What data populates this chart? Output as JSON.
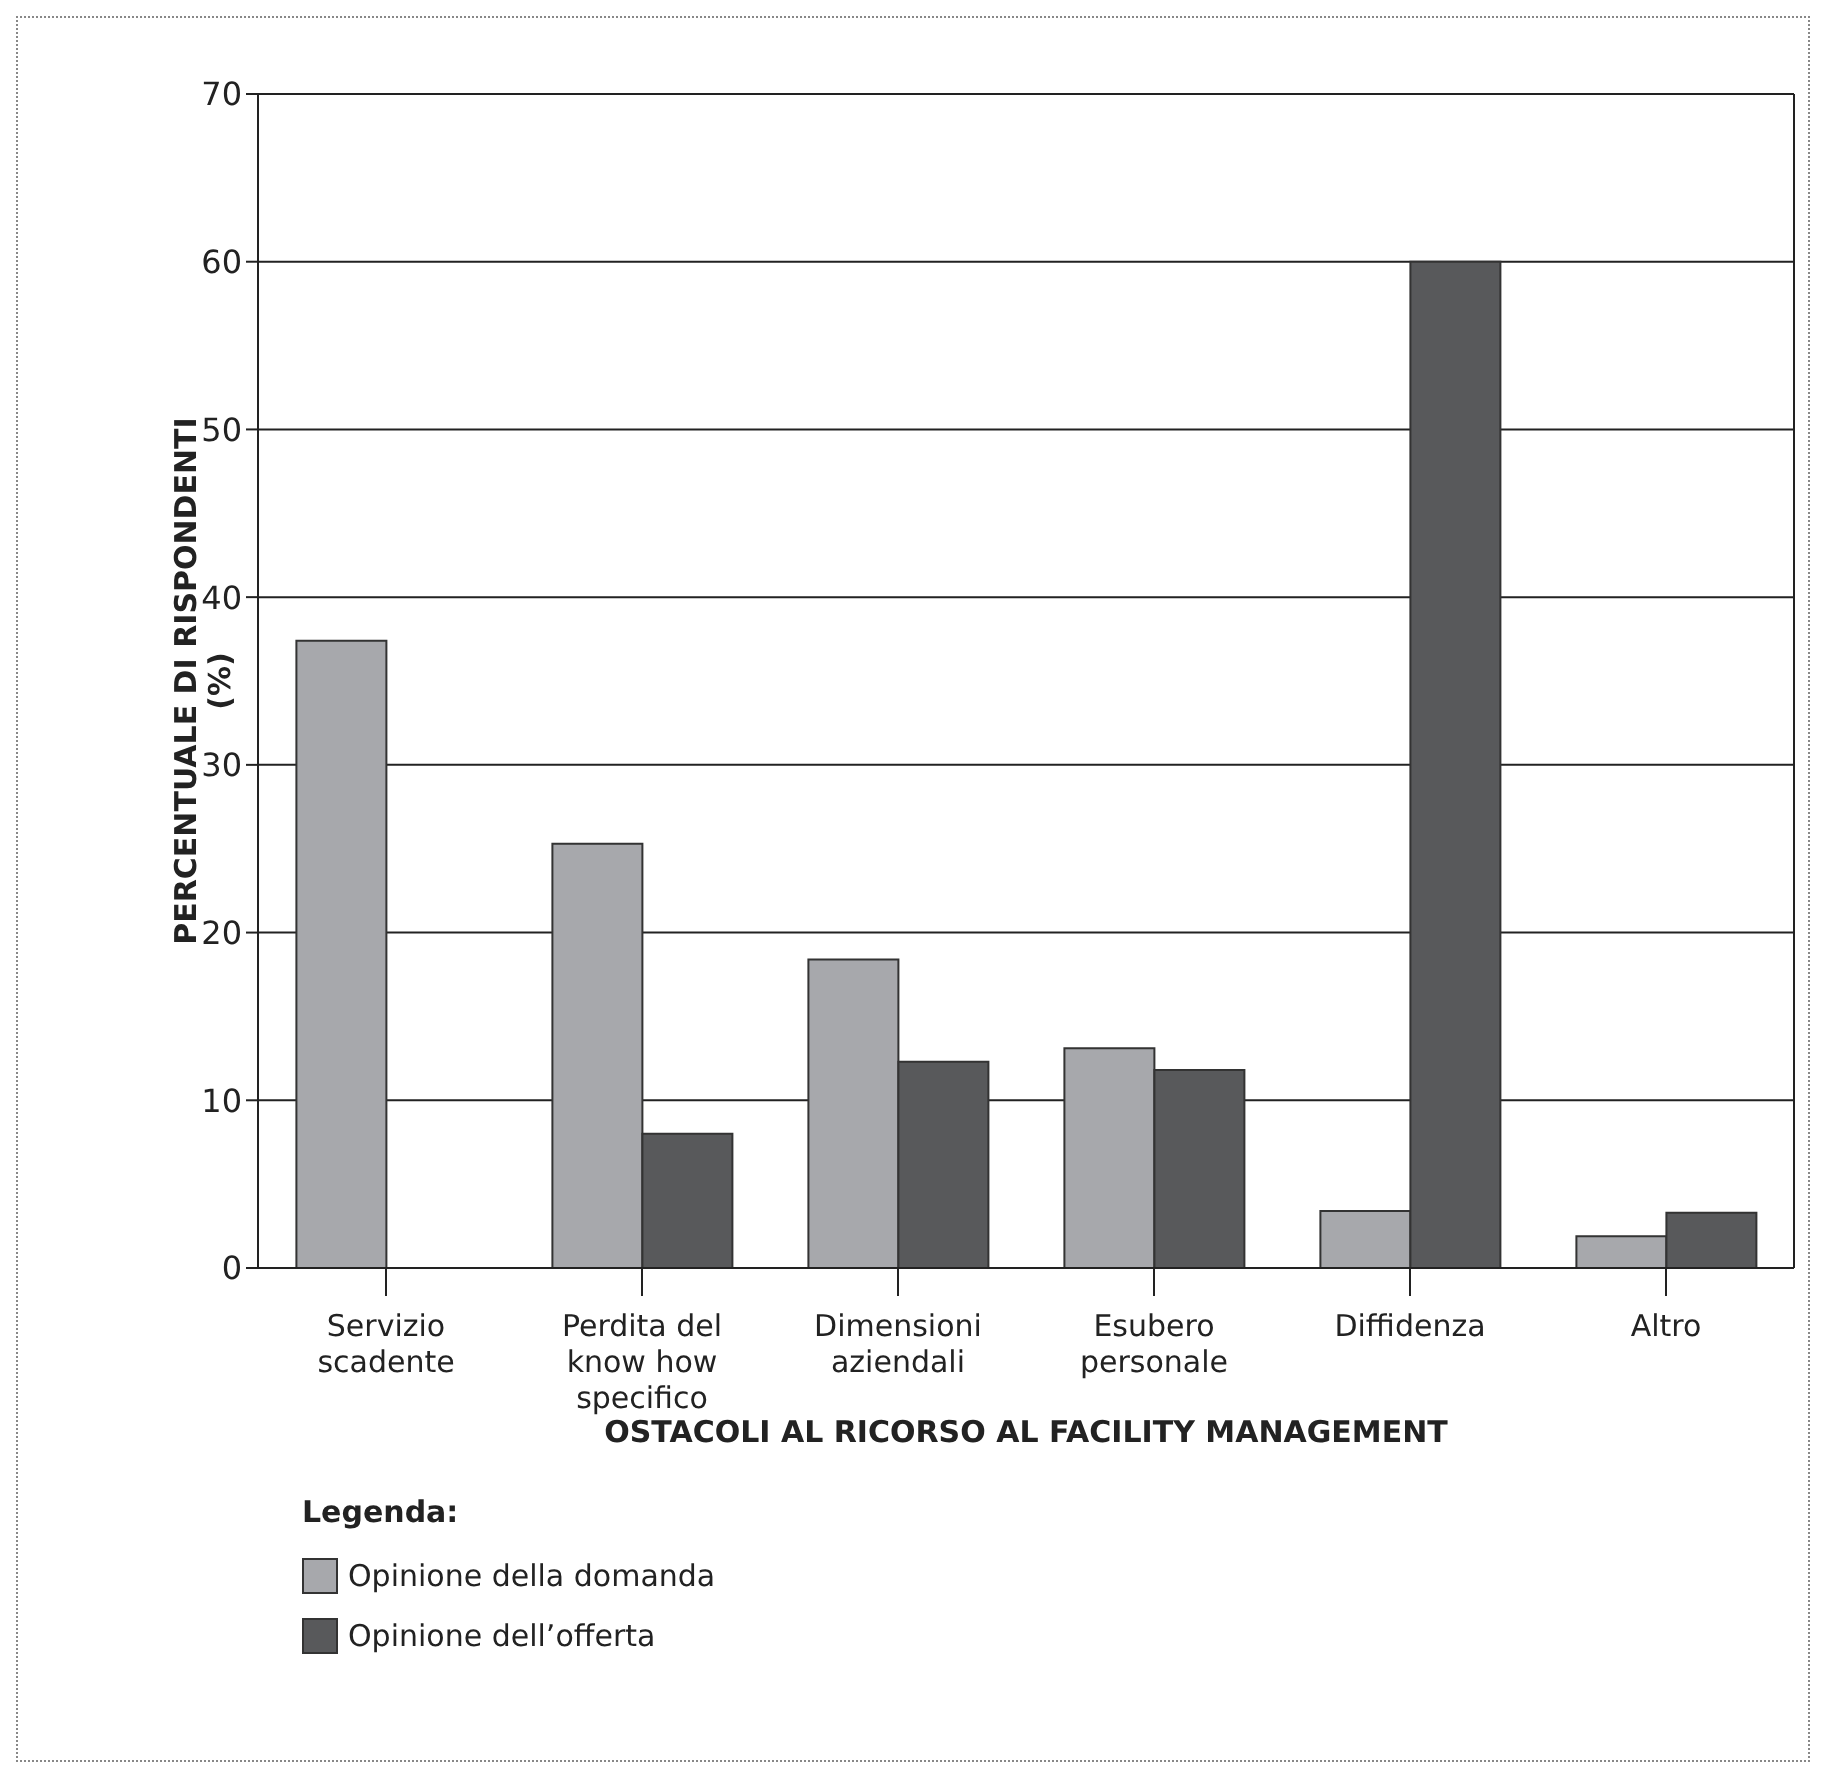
{
  "chart_data": {
    "type": "bar",
    "xlabel": "OSTACOLI AL RICORSO AL FACILITY MANAGEMENT",
    "ylabel": "PERCENTUALE DI RISPONDENTI (%)",
    "legend_title": "Legenda:",
    "categories": [
      "Servizio scadente",
      "Perdita del know how specifico",
      "Dimensioni aziendali",
      "Esubero personale",
      "Diffidenza",
      "Altro"
    ],
    "series": [
      {
        "name": "Opinione della domanda",
        "color": "#a7a8ac",
        "values": [
          37.4,
          25.3,
          18.4,
          13.1,
          3.4,
          1.9
        ]
      },
      {
        "name": "Opinione dell’offerta",
        "color": "#58595b",
        "values": [
          0,
          8.0,
          12.3,
          11.8,
          60,
          3.3
        ]
      }
    ],
    "ylim": [
      0,
      70
    ],
    "yticks": [
      0,
      10,
      20,
      30,
      40,
      50,
      60,
      70
    ],
    "grid": "y",
    "legend": "bottom left"
  }
}
